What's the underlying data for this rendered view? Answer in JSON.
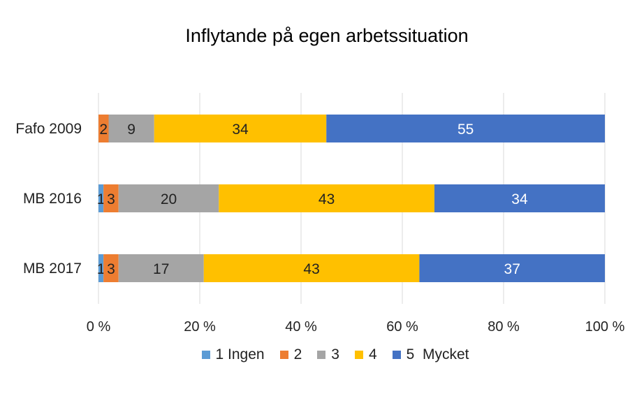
{
  "chart_data": {
    "type": "bar",
    "orientation": "horizontal",
    "stacked": "percent",
    "title": "Inflytande på egen arbetssituation",
    "categories": [
      "Fafo 2009",
      "MB 2016",
      "MB 2017"
    ],
    "series": [
      {
        "name": "1 Ingen",
        "color": "#5B9BD5",
        "values": [
          0,
          1,
          1
        ]
      },
      {
        "name": "2",
        "color": "#ED7D31",
        "values": [
          2,
          3,
          3
        ]
      },
      {
        "name": "3",
        "color": "#A5A5A5",
        "values": [
          9,
          20,
          17
        ]
      },
      {
        "name": "4",
        "color": "#FFC000",
        "values": [
          34,
          43,
          43
        ]
      },
      {
        "name": "5  Mycket",
        "color": "#4472C4",
        "values": [
          55,
          34,
          37
        ]
      }
    ],
    "x_ticks": [
      "0 %",
      "20 %",
      "40 %",
      "60 %",
      "80 %",
      "100 %"
    ],
    "xlim": [
      0,
      100
    ],
    "grid": true,
    "legend": "bottom"
  }
}
